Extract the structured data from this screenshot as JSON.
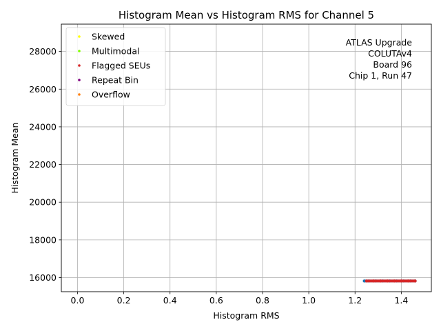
{
  "chart_data": {
    "type": "scatter",
    "title": "Histogram Mean vs Histogram RMS for Channel 5",
    "xlabel": "Histogram RMS",
    "ylabel": "Histogram Mean",
    "xlim": [
      -0.07,
      1.53
    ],
    "ylim": [
      15250,
      29450
    ],
    "xticks": [
      0.0,
      0.2,
      0.4,
      0.6,
      0.8,
      1.0,
      1.2,
      1.4
    ],
    "xtick_labels": [
      "0.0",
      "0.2",
      "0.4",
      "0.6",
      "0.8",
      "1.0",
      "1.2",
      "1.4"
    ],
    "yticks": [
      16000,
      18000,
      20000,
      22000,
      24000,
      26000,
      28000
    ],
    "ytick_labels": [
      "16000",
      "18000",
      "20000",
      "22000",
      "24000",
      "26000",
      "28000"
    ],
    "grid": true,
    "legend_position": "top-left",
    "series": [
      {
        "name": "Skewed",
        "color": "#ffff00",
        "x": [],
        "y": []
      },
      {
        "name": "Multimodal",
        "color": "#7fff00",
        "x": [],
        "y": []
      },
      {
        "name": "Flagged SEUs",
        "color": "#d62728",
        "x": [
          1.25,
          1.28,
          1.31,
          1.34,
          1.37,
          1.4,
          1.43,
          1.46
        ],
        "y": [
          15820,
          15820,
          15820,
          15820,
          15820,
          15820,
          15820,
          15820
        ]
      },
      {
        "name": "Repeat Bin",
        "color": "#800080",
        "x": [],
        "y": []
      },
      {
        "name": "Overflow",
        "color": "#ff7f0e",
        "x": [],
        "y": []
      },
      {
        "color": "#1f77b4",
        "x": [
          1.24,
          1.26,
          1.29,
          1.32,
          1.35,
          1.38,
          1.41,
          1.44,
          1.46
        ],
        "y": [
          15820,
          15820,
          15820,
          15820,
          15820,
          15820,
          15820,
          15820,
          15820
        ]
      }
    ],
    "annotation": {
      "lines": [
        "ATLAS Upgrade",
        "COLUTAv4",
        "Board 96",
        "Chip 1, Run 47"
      ]
    }
  }
}
